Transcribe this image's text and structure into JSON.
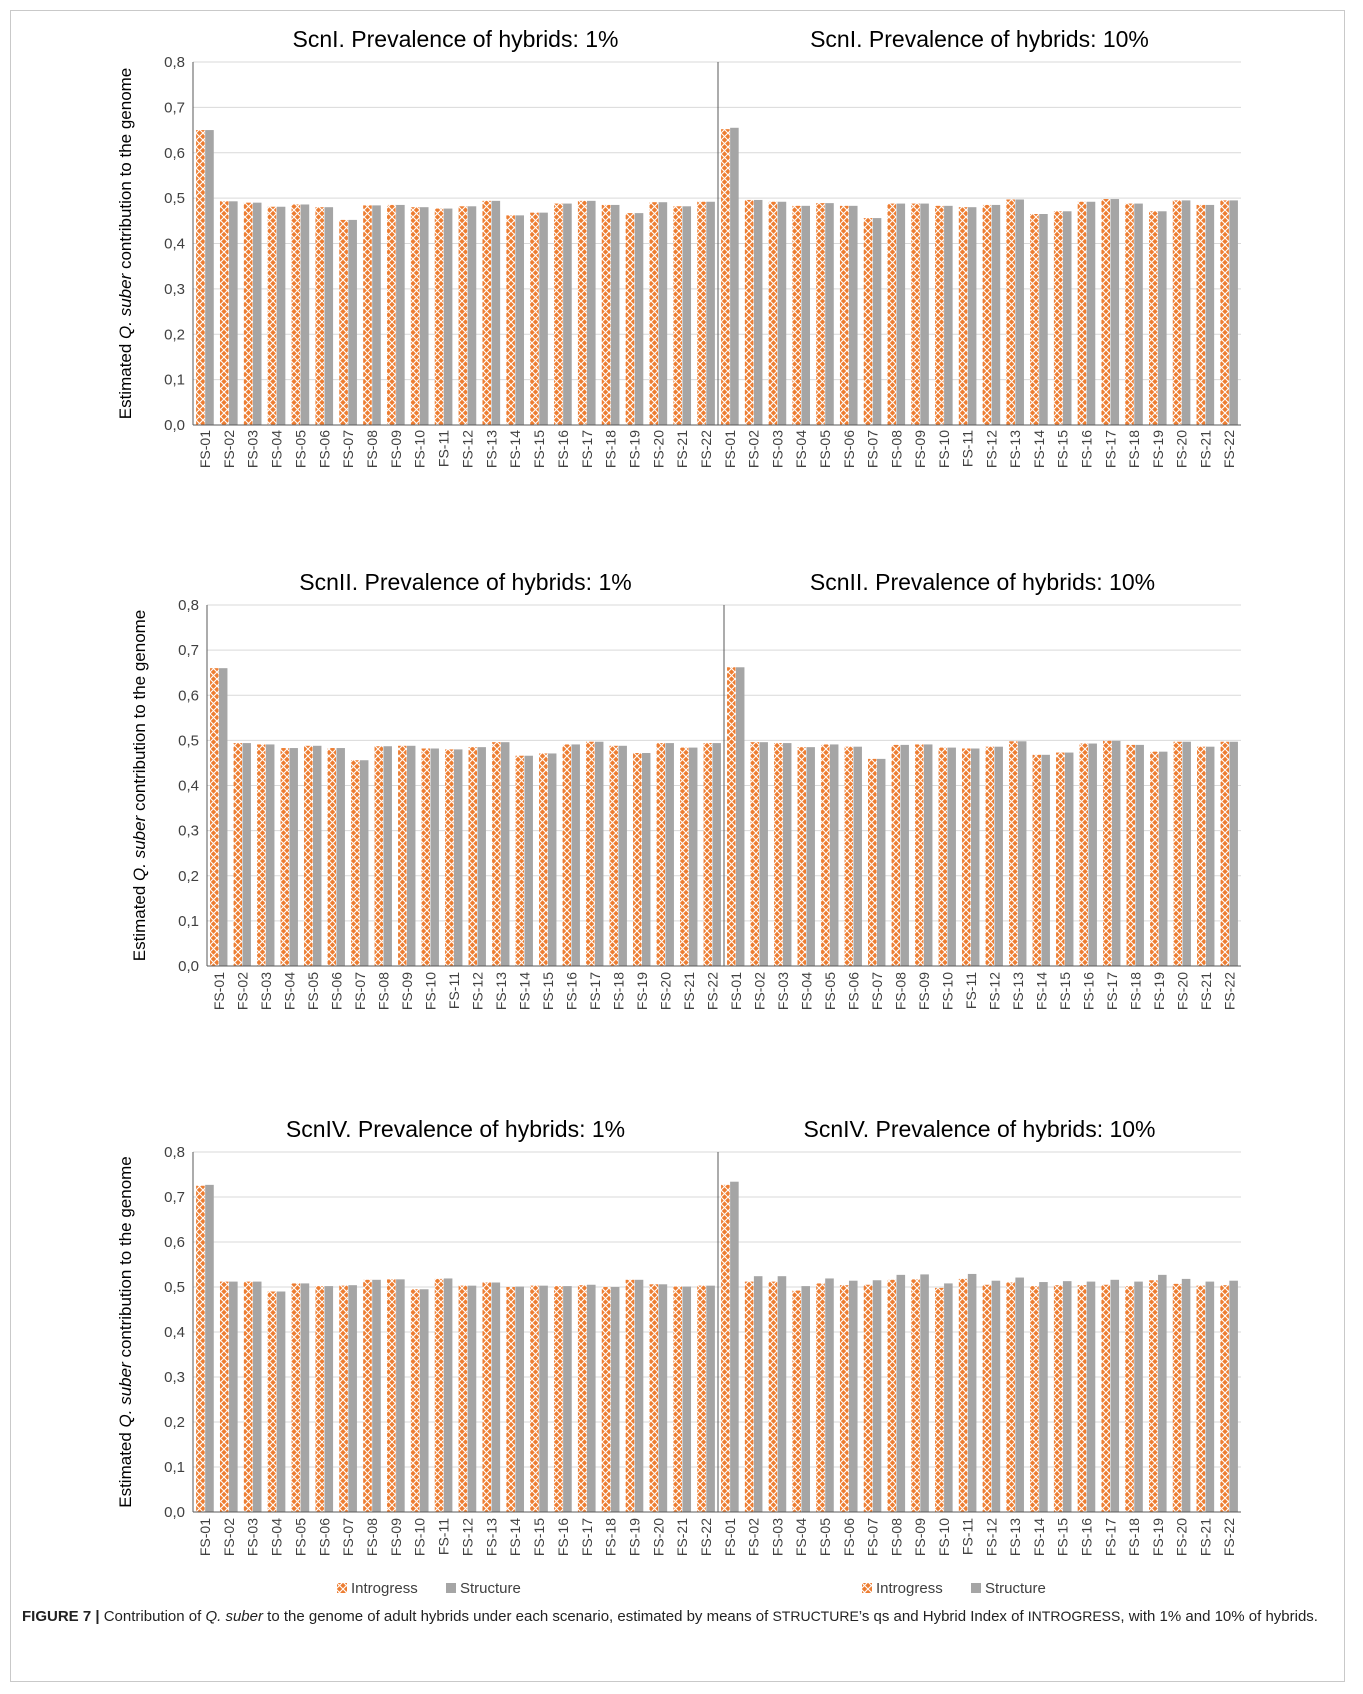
{
  "y_axis_label_prefix": "Estimated ",
  "y_axis_label_italic": "Q. suber",
  "y_axis_label_suffix": " contribution to the genome",
  "legend": {
    "introgress": "Introgress",
    "structure": "Structure"
  },
  "colors": {
    "introgress": "#ED7D31",
    "structure": "#A5A5A5",
    "grid": "#d9d9d9",
    "axis": "#595959"
  },
  "caption": {
    "figure_label": "FIGURE 7 |",
    "t1": " Contribution of ",
    "t2_italic": "Q. suber",
    "t3": " to the genome of adult hybrids under each scenario, estimated by means of ",
    "t4_sc": "STRUCTURE",
    "t5": "’s qs and Hybrid Index of ",
    "t6_sc": "INTROGRESS",
    "t7": ", with 1% and 10% of hybrids."
  },
  "chart_data": [
    {
      "type": "bar",
      "title": "ScnI. Prevalence of hybrids: 1%",
      "ylabel": "Estimated Q. suber contribution to the genome",
      "ylim": [
        0,
        0.8
      ],
      "yticks": [
        "0,0",
        "0,1",
        "0,2",
        "0,3",
        "0,4",
        "0,5",
        "0,6",
        "0,7",
        "0,8"
      ],
      "grid": true,
      "categories": [
        "FS-01",
        "FS-02",
        "FS-03",
        "FS-04",
        "FS-05",
        "FS-06",
        "FS-07",
        "FS-08",
        "FS-09",
        "FS-10",
        "FS-11",
        "FS-12",
        "FS-13",
        "FS-14",
        "FS-15",
        "FS-16",
        "FS-17",
        "FS-18",
        "FS-19",
        "FS-20",
        "FS-21",
        "FS-22"
      ],
      "series": [
        {
          "name": "Introgress",
          "values": [
            0.65,
            0.493,
            0.49,
            0.481,
            0.486,
            0.48,
            0.452,
            0.484,
            0.485,
            0.48,
            0.477,
            0.482,
            0.494,
            0.462,
            0.468,
            0.488,
            0.494,
            0.485,
            0.467,
            0.491,
            0.482,
            0.492
          ]
        },
        {
          "name": "Structure",
          "values": [
            0.65,
            0.493,
            0.49,
            0.481,
            0.486,
            0.48,
            0.452,
            0.484,
            0.485,
            0.48,
            0.477,
            0.482,
            0.494,
            0.462,
            0.468,
            0.488,
            0.494,
            0.485,
            0.467,
            0.491,
            0.482,
            0.492
          ]
        }
      ]
    },
    {
      "type": "bar",
      "title": "ScnI. Prevalence of hybrids: 10%",
      "ylim": [
        0,
        0.8
      ],
      "grid": true,
      "categories": [
        "FS-01",
        "FS-02",
        "FS-03",
        "FS-04",
        "FS-05",
        "FS-06",
        "FS-07",
        "FS-08",
        "FS-09",
        "FS-10",
        "FS-11",
        "FS-12",
        "FS-13",
        "FS-14",
        "FS-15",
        "FS-16",
        "FS-17",
        "FS-18",
        "FS-19",
        "FS-20",
        "FS-21",
        "FS-22"
      ],
      "series": [
        {
          "name": "Introgress",
          "values": [
            0.652,
            0.496,
            0.492,
            0.483,
            0.489,
            0.483,
            0.456,
            0.488,
            0.488,
            0.483,
            0.48,
            0.485,
            0.497,
            0.465,
            0.471,
            0.492,
            0.498,
            0.488,
            0.471,
            0.495,
            0.485,
            0.495
          ]
        },
        {
          "name": "Structure",
          "values": [
            0.655,
            0.496,
            0.492,
            0.483,
            0.489,
            0.483,
            0.456,
            0.488,
            0.488,
            0.483,
            0.48,
            0.485,
            0.497,
            0.465,
            0.471,
            0.492,
            0.498,
            0.488,
            0.471,
            0.495,
            0.485,
            0.495
          ]
        }
      ]
    },
    {
      "type": "bar",
      "title": "ScnII. Prevalence of hybrids: 1%",
      "ylabel": "Estimated Q. suber contribution to the genome",
      "ylim": [
        0,
        0.8
      ],
      "yticks": [
        "0,0",
        "0,1",
        "0,2",
        "0,3",
        "0,4",
        "0,5",
        "0,6",
        "0,7",
        "0,8"
      ],
      "grid": true,
      "categories": [
        "FS-01",
        "FS-02",
        "FS-03",
        "FS-04",
        "FS-05",
        "FS-06",
        "FS-07",
        "FS-08",
        "FS-09",
        "FS-10",
        "FS-11",
        "FS-12",
        "FS-13",
        "FS-14",
        "FS-15",
        "FS-16",
        "FS-17",
        "FS-18",
        "FS-19",
        "FS-20",
        "FS-21",
        "FS-22"
      ],
      "series": [
        {
          "name": "Introgress",
          "values": [
            0.66,
            0.494,
            0.491,
            0.483,
            0.488,
            0.483,
            0.456,
            0.487,
            0.488,
            0.482,
            0.48,
            0.485,
            0.496,
            0.466,
            0.471,
            0.491,
            0.497,
            0.488,
            0.472,
            0.494,
            0.484,
            0.494
          ]
        },
        {
          "name": "Structure",
          "values": [
            0.66,
            0.494,
            0.491,
            0.483,
            0.488,
            0.483,
            0.456,
            0.487,
            0.488,
            0.482,
            0.48,
            0.485,
            0.496,
            0.466,
            0.471,
            0.491,
            0.497,
            0.488,
            0.472,
            0.494,
            0.484,
            0.494
          ]
        }
      ]
    },
    {
      "type": "bar",
      "title": "ScnII. Prevalence of hybrids: 10%",
      "ylim": [
        0,
        0.8
      ],
      "grid": true,
      "categories": [
        "FS-01",
        "FS-02",
        "FS-03",
        "FS-04",
        "FS-05",
        "FS-06",
        "FS-07",
        "FS-08",
        "FS-09",
        "FS-10",
        "FS-11",
        "FS-12",
        "FS-13",
        "FS-14",
        "FS-15",
        "FS-16",
        "FS-17",
        "FS-18",
        "FS-19",
        "FS-20",
        "FS-21",
        "FS-22"
      ],
      "series": [
        {
          "name": "Introgress",
          "values": [
            0.662,
            0.496,
            0.494,
            0.485,
            0.491,
            0.486,
            0.459,
            0.49,
            0.491,
            0.484,
            0.482,
            0.486,
            0.498,
            0.468,
            0.473,
            0.493,
            0.499,
            0.49,
            0.475,
            0.497,
            0.486,
            0.497
          ]
        },
        {
          "name": "Structure",
          "values": [
            0.662,
            0.496,
            0.494,
            0.485,
            0.491,
            0.486,
            0.459,
            0.49,
            0.491,
            0.484,
            0.482,
            0.486,
            0.498,
            0.468,
            0.473,
            0.493,
            0.499,
            0.49,
            0.475,
            0.497,
            0.486,
            0.497
          ]
        }
      ]
    },
    {
      "type": "bar",
      "title": "ScnIV. Prevalence of hybrids: 1%",
      "ylabel": "Estimated Q. suber contribution to the genome",
      "ylim": [
        0,
        0.8
      ],
      "yticks": [
        "0,0",
        "0,1",
        "0,2",
        "0,3",
        "0,4",
        "0,5",
        "0,6",
        "0,7",
        "0,8"
      ],
      "grid": true,
      "categories": [
        "FS-01",
        "FS-02",
        "FS-03",
        "FS-04",
        "FS-05",
        "FS-06",
        "FS-07",
        "FS-08",
        "FS-09",
        "FS-10",
        "FS-11",
        "FS-12",
        "FS-13",
        "FS-14",
        "FS-15",
        "FS-16",
        "FS-17",
        "FS-18",
        "FS-19",
        "FS-20",
        "FS-21",
        "FS-22"
      ],
      "series": [
        {
          "name": "Introgress",
          "values": [
            0.725,
            0.512,
            0.512,
            0.49,
            0.508,
            0.502,
            0.503,
            0.516,
            0.517,
            0.495,
            0.518,
            0.503,
            0.51,
            0.5,
            0.503,
            0.502,
            0.504,
            0.5,
            0.516,
            0.506,
            0.501,
            0.503
          ]
        },
        {
          "name": "Structure",
          "values": [
            0.727,
            0.512,
            0.512,
            0.49,
            0.508,
            0.502,
            0.504,
            0.516,
            0.517,
            0.495,
            0.519,
            0.503,
            0.51,
            0.501,
            0.503,
            0.502,
            0.505,
            0.5,
            0.516,
            0.506,
            0.501,
            0.503
          ]
        }
      ]
    },
    {
      "type": "bar",
      "title": "ScnIV. Prevalence of hybrids: 10%",
      "ylim": [
        0,
        0.8
      ],
      "grid": true,
      "categories": [
        "FS-01",
        "FS-02",
        "FS-03",
        "FS-04",
        "FS-05",
        "FS-06",
        "FS-07",
        "FS-08",
        "FS-09",
        "FS-10",
        "FS-11",
        "FS-12",
        "FS-13",
        "FS-14",
        "FS-15",
        "FS-16",
        "FS-17",
        "FS-18",
        "FS-19",
        "FS-20",
        "FS-21",
        "FS-22"
      ],
      "series": [
        {
          "name": "Introgress",
          "values": [
            0.727,
            0.512,
            0.512,
            0.492,
            0.508,
            0.504,
            0.505,
            0.516,
            0.517,
            0.498,
            0.518,
            0.505,
            0.51,
            0.502,
            0.504,
            0.504,
            0.505,
            0.502,
            0.515,
            0.507,
            0.503,
            0.504
          ]
        },
        {
          "name": "Structure",
          "values": [
            0.734,
            0.524,
            0.524,
            0.502,
            0.519,
            0.514,
            0.515,
            0.527,
            0.528,
            0.508,
            0.529,
            0.514,
            0.521,
            0.511,
            0.513,
            0.512,
            0.516,
            0.512,
            0.527,
            0.518,
            0.512,
            0.514
          ]
        }
      ]
    }
  ]
}
